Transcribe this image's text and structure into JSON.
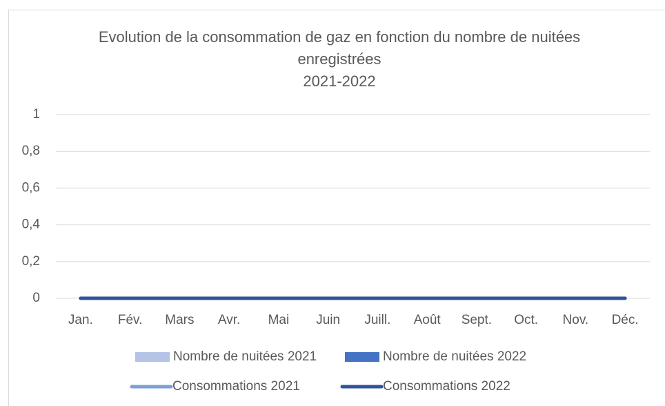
{
  "chart_data": {
    "type": "combo",
    "title": "Evolution de la consommation de gaz en fonction du nombre de nuitées enregistrées",
    "subtitle": "2021-2022",
    "categories": [
      "Jan.",
      "Fév.",
      "Mars",
      "Avr.",
      "Mai",
      "Juin",
      "Juill.",
      "Août",
      "Sept.",
      "Oct.",
      "Nov.",
      "Déc."
    ],
    "series": [
      {
        "name": "Nombre de nuitées 2021",
        "type": "bar",
        "color": "#b4c3e6",
        "values": [
          0,
          0,
          0,
          0,
          0,
          0,
          0,
          0,
          0,
          0,
          0,
          0
        ]
      },
      {
        "name": "Nombre de nuitées 2022",
        "type": "bar",
        "color": "#4472c4",
        "values": [
          0,
          0,
          0,
          0,
          0,
          0,
          0,
          0,
          0,
          0,
          0,
          0
        ]
      },
      {
        "name": "Consommations 2021",
        "type": "line",
        "color": "#7f9fd9",
        "values": [
          0,
          0,
          0,
          0,
          0,
          0,
          0,
          0,
          0,
          0,
          0,
          0
        ]
      },
      {
        "name": "Consommations 2022",
        "type": "line",
        "color": "#2f5597",
        "values": [
          0,
          0,
          0,
          0,
          0,
          0,
          0,
          0,
          0,
          0,
          0,
          0
        ]
      }
    ],
    "ylim": [
      0,
      1
    ],
    "yticks": [
      0,
      {
        "value": 0.2,
        "label": "0,2"
      },
      {
        "value": 0.4,
        "label": "0,4"
      },
      {
        "value": 0.6,
        "label": "0,6"
      },
      {
        "value": 0.8,
        "label": "0,8"
      },
      1
    ],
    "grid": true,
    "legend": "bottom"
  }
}
